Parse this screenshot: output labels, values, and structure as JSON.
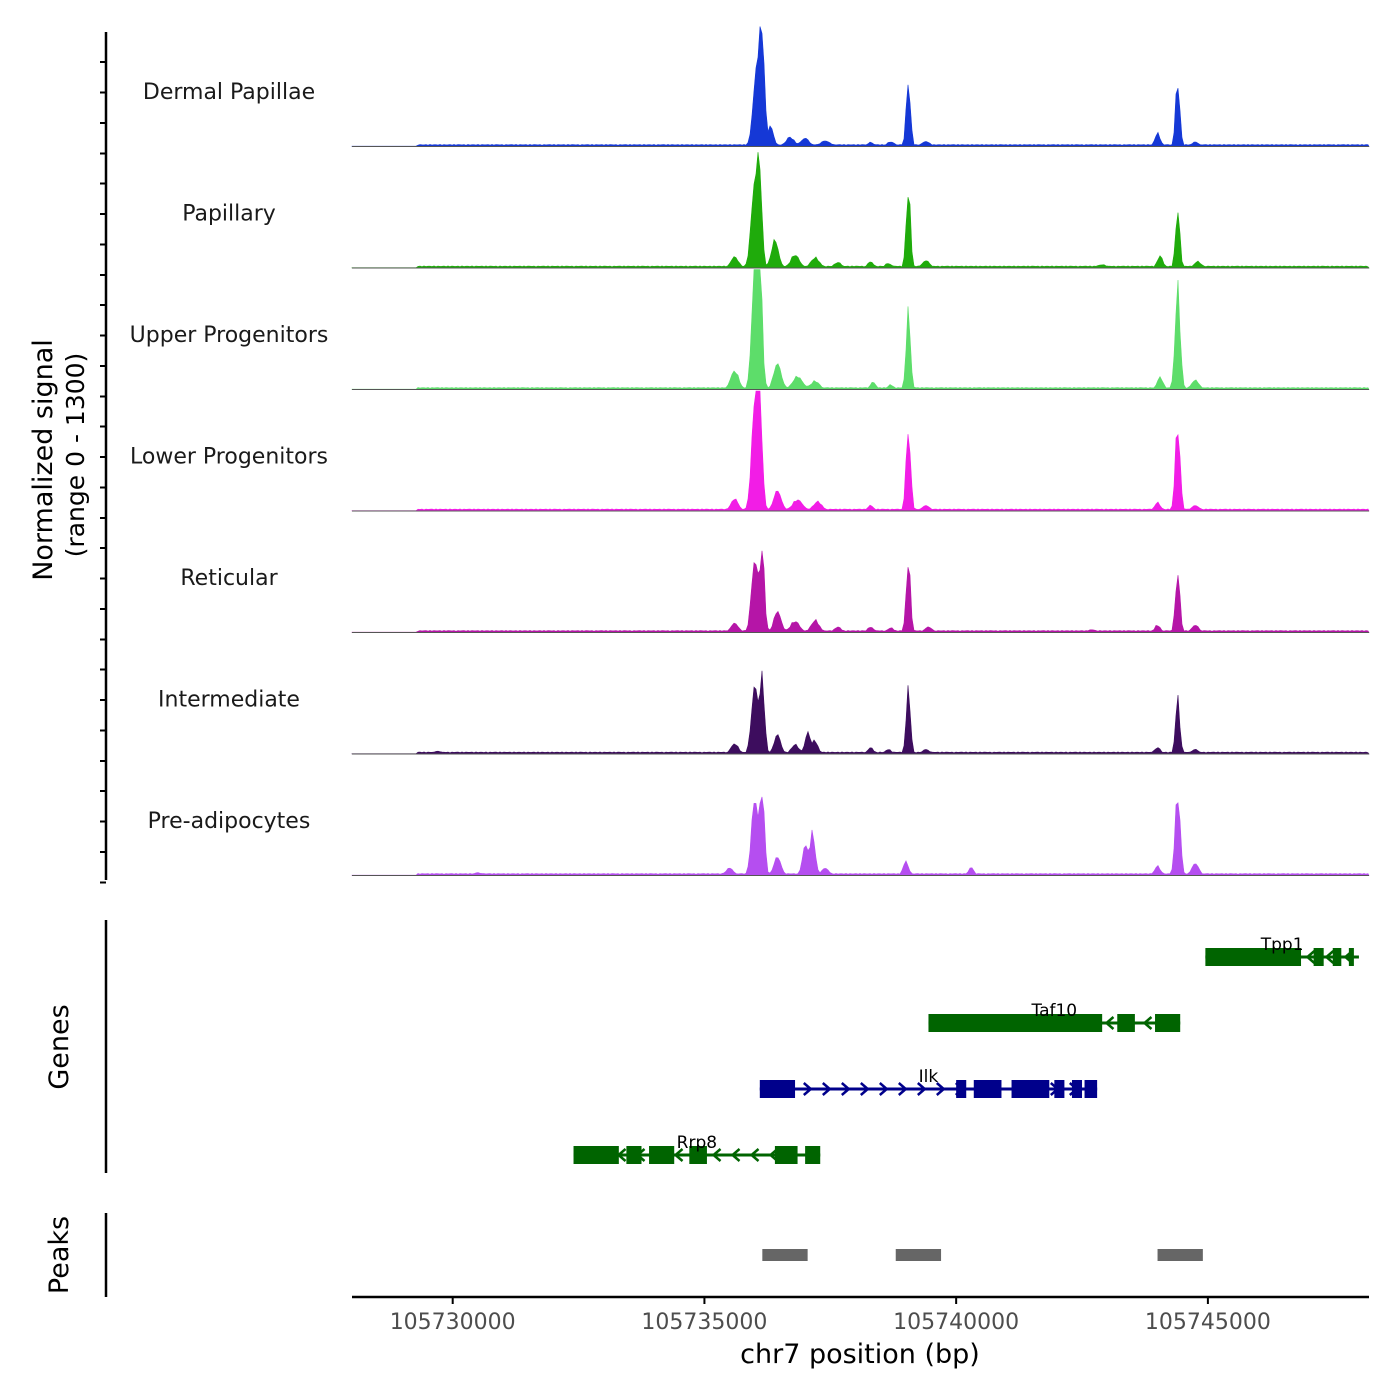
{
  "chart_data": {
    "type": "area",
    "title": "",
    "chrom": "chr7",
    "xlim": [
      105728000,
      105748200
    ],
    "xlabel": "chr7 position (bp)",
    "x_ticks": [
      105730000,
      105735000,
      105740000,
      105745000
    ],
    "x_tick_labels": [
      "105730000",
      "105735000",
      "105740000",
      "105745000"
    ],
    "ylabel_line1": "Normalized signal",
    "ylabel_line2": "(range 0 - 1300)",
    "ylim": [
      0,
      1300
    ],
    "genes_label": "Genes",
    "peaks_label": "Peaks",
    "tracks": [
      {
        "name": "Dermal Papillae",
        "color": "#1538d6",
        "peaks": [
          {
            "x": 105736050,
            "h": 880,
            "w": 150
          },
          {
            "x": 105736150,
            "h": 930,
            "w": 90
          },
          {
            "x": 105736320,
            "h": 210,
            "w": 110
          },
          {
            "x": 105736700,
            "h": 100,
            "w": 160
          },
          {
            "x": 105737000,
            "h": 90,
            "w": 160
          },
          {
            "x": 105737400,
            "h": 60,
            "w": 200
          },
          {
            "x": 105738300,
            "h": 45,
            "w": 120
          },
          {
            "x": 105738700,
            "h": 50,
            "w": 150
          },
          {
            "x": 105739050,
            "h": 690,
            "w": 85
          },
          {
            "x": 105739400,
            "h": 55,
            "w": 160
          },
          {
            "x": 105744400,
            "h": 700,
            "w": 85
          },
          {
            "x": 105744000,
            "h": 140,
            "w": 110
          },
          {
            "x": 105744750,
            "h": 50,
            "w": 130
          }
        ]
      },
      {
        "name": "Papillary",
        "color": "#1fab0b",
        "peaks": [
          {
            "x": 105736000,
            "h": 900,
            "w": 140
          },
          {
            "x": 105736100,
            "h": 820,
            "w": 90
          },
          {
            "x": 105735600,
            "h": 120,
            "w": 150
          },
          {
            "x": 105736400,
            "h": 300,
            "w": 140
          },
          {
            "x": 105736800,
            "h": 140,
            "w": 170
          },
          {
            "x": 105737200,
            "h": 110,
            "w": 170
          },
          {
            "x": 105737650,
            "h": 60,
            "w": 150
          },
          {
            "x": 105738300,
            "h": 70,
            "w": 110
          },
          {
            "x": 105738650,
            "h": 50,
            "w": 130
          },
          {
            "x": 105739050,
            "h": 840,
            "w": 85
          },
          {
            "x": 105739400,
            "h": 80,
            "w": 150
          },
          {
            "x": 105744400,
            "h": 620,
            "w": 85
          },
          {
            "x": 105744050,
            "h": 130,
            "w": 110
          },
          {
            "x": 105744800,
            "h": 70,
            "w": 140
          },
          {
            "x": 105742900,
            "h": 35,
            "w": 200
          }
        ]
      },
      {
        "name": "Upper Progenitors",
        "color": "#5ddd6a",
        "peaks": [
          {
            "x": 105736000,
            "h": 1280,
            "w": 120
          },
          {
            "x": 105736100,
            "h": 1200,
            "w": 100
          },
          {
            "x": 105735600,
            "h": 200,
            "w": 160
          },
          {
            "x": 105736450,
            "h": 280,
            "w": 150
          },
          {
            "x": 105736850,
            "h": 140,
            "w": 190
          },
          {
            "x": 105737200,
            "h": 90,
            "w": 170
          },
          {
            "x": 105738350,
            "h": 80,
            "w": 110
          },
          {
            "x": 105738700,
            "h": 50,
            "w": 120
          },
          {
            "x": 105739050,
            "h": 830,
            "w": 85
          },
          {
            "x": 105744400,
            "h": 1080,
            "w": 100
          },
          {
            "x": 105744050,
            "h": 130,
            "w": 120
          },
          {
            "x": 105744750,
            "h": 100,
            "w": 150
          }
        ]
      },
      {
        "name": "Lower Progenitors",
        "color": "#f21de6",
        "peaks": [
          {
            "x": 105736000,
            "h": 1100,
            "w": 130
          },
          {
            "x": 105736100,
            "h": 1060,
            "w": 100
          },
          {
            "x": 105735600,
            "h": 130,
            "w": 150
          },
          {
            "x": 105736450,
            "h": 220,
            "w": 150
          },
          {
            "x": 105736850,
            "h": 120,
            "w": 200
          },
          {
            "x": 105737250,
            "h": 100,
            "w": 170
          },
          {
            "x": 105738300,
            "h": 60,
            "w": 120
          },
          {
            "x": 105739050,
            "h": 870,
            "w": 90
          },
          {
            "x": 105739400,
            "h": 60,
            "w": 150
          },
          {
            "x": 105744400,
            "h": 920,
            "w": 95
          },
          {
            "x": 105744000,
            "h": 90,
            "w": 120
          },
          {
            "x": 105744750,
            "h": 60,
            "w": 150
          }
        ]
      },
      {
        "name": "Reticular",
        "color": "#b515a7",
        "peaks": [
          {
            "x": 105736000,
            "h": 780,
            "w": 130
          },
          {
            "x": 105736150,
            "h": 830,
            "w": 90
          },
          {
            "x": 105735600,
            "h": 100,
            "w": 150
          },
          {
            "x": 105736450,
            "h": 230,
            "w": 140
          },
          {
            "x": 105736800,
            "h": 120,
            "w": 180
          },
          {
            "x": 105737200,
            "h": 130,
            "w": 160
          },
          {
            "x": 105737650,
            "h": 60,
            "w": 140
          },
          {
            "x": 105738300,
            "h": 60,
            "w": 120
          },
          {
            "x": 105738700,
            "h": 50,
            "w": 130
          },
          {
            "x": 105739050,
            "h": 760,
            "w": 85
          },
          {
            "x": 105739450,
            "h": 60,
            "w": 150
          },
          {
            "x": 105744400,
            "h": 630,
            "w": 90
          },
          {
            "x": 105744000,
            "h": 80,
            "w": 110
          },
          {
            "x": 105744750,
            "h": 80,
            "w": 140
          },
          {
            "x": 105742700,
            "h": 30,
            "w": 180
          }
        ]
      },
      {
        "name": "Intermediate",
        "color": "#3d0d5e",
        "peaks": [
          {
            "x": 105736000,
            "h": 730,
            "w": 130
          },
          {
            "x": 105736150,
            "h": 780,
            "w": 90
          },
          {
            "x": 105735600,
            "h": 110,
            "w": 150
          },
          {
            "x": 105736450,
            "h": 210,
            "w": 130
          },
          {
            "x": 105736800,
            "h": 100,
            "w": 150
          },
          {
            "x": 105737050,
            "h": 230,
            "w": 100
          },
          {
            "x": 105737200,
            "h": 140,
            "w": 110
          },
          {
            "x": 105738300,
            "h": 70,
            "w": 110
          },
          {
            "x": 105738650,
            "h": 50,
            "w": 120
          },
          {
            "x": 105739050,
            "h": 690,
            "w": 85
          },
          {
            "x": 105739400,
            "h": 50,
            "w": 140
          },
          {
            "x": 105744400,
            "h": 590,
            "w": 85
          },
          {
            "x": 105744000,
            "h": 70,
            "w": 120
          },
          {
            "x": 105744750,
            "h": 50,
            "w": 140
          },
          {
            "x": 105729700,
            "h": 30,
            "w": 160
          }
        ]
      },
      {
        "name": "Pre-adipocytes",
        "color": "#b54ef0",
        "peaks": [
          {
            "x": 105736000,
            "h": 820,
            "w": 130
          },
          {
            "x": 105736150,
            "h": 860,
            "w": 90
          },
          {
            "x": 105735500,
            "h": 80,
            "w": 150
          },
          {
            "x": 105736450,
            "h": 200,
            "w": 140
          },
          {
            "x": 105737000,
            "h": 320,
            "w": 110
          },
          {
            "x": 105737150,
            "h": 450,
            "w": 100
          },
          {
            "x": 105737400,
            "h": 80,
            "w": 140
          },
          {
            "x": 105739000,
            "h": 150,
            "w": 110
          },
          {
            "x": 105740300,
            "h": 90,
            "w": 100
          },
          {
            "x": 105744400,
            "h": 880,
            "w": 100
          },
          {
            "x": 105744000,
            "h": 100,
            "w": 120
          },
          {
            "x": 105744750,
            "h": 130,
            "w": 140
          },
          {
            "x": 105730500,
            "h": 30,
            "w": 180
          }
        ]
      }
    ],
    "genes": [
      {
        "name": "Tpp1",
        "strand": "-",
        "color": "#006400",
        "row": 0,
        "start": 105744950,
        "end": 105748000,
        "exons": [
          [
            105744950,
            105746850
          ],
          [
            105747100,
            105747300
          ],
          [
            105747480,
            105747650
          ],
          [
            105747800,
            105747900
          ]
        ]
      },
      {
        "name": "Taf10",
        "strand": "-",
        "color": "#006400",
        "row": 1,
        "start": 105739450,
        "end": 105744450,
        "exons": [
          [
            105739450,
            105742900
          ],
          [
            105743200,
            105743550
          ],
          [
            105743950,
            105744450
          ]
        ]
      },
      {
        "name": "Ilk",
        "strand": "+",
        "color": "#00008b",
        "row": 2,
        "start": 105736100,
        "end": 105742800,
        "exons": [
          [
            105736100,
            105736800
          ],
          [
            105740000,
            105740200
          ],
          [
            105740350,
            105740900
          ],
          [
            105741100,
            105741850
          ],
          [
            105741950,
            105742150
          ],
          [
            105742300,
            105742500
          ],
          [
            105742550,
            105742800
          ]
        ]
      },
      {
        "name": "Rrp8",
        "strand": "-",
        "color": "#006400",
        "row": 3,
        "start": 105732400,
        "end": 105737300,
        "exons": [
          [
            105732400,
            105733300
          ],
          [
            105733450,
            105733750
          ],
          [
            105733900,
            105734400
          ],
          [
            105734700,
            105735050
          ],
          [
            105736400,
            105736850
          ],
          [
            105737000,
            105737300
          ]
        ]
      }
    ],
    "peak_regions": [
      [
        105736150,
        105737050
      ],
      [
        105738800,
        105739700
      ],
      [
        105744000,
        105744900
      ]
    ]
  }
}
